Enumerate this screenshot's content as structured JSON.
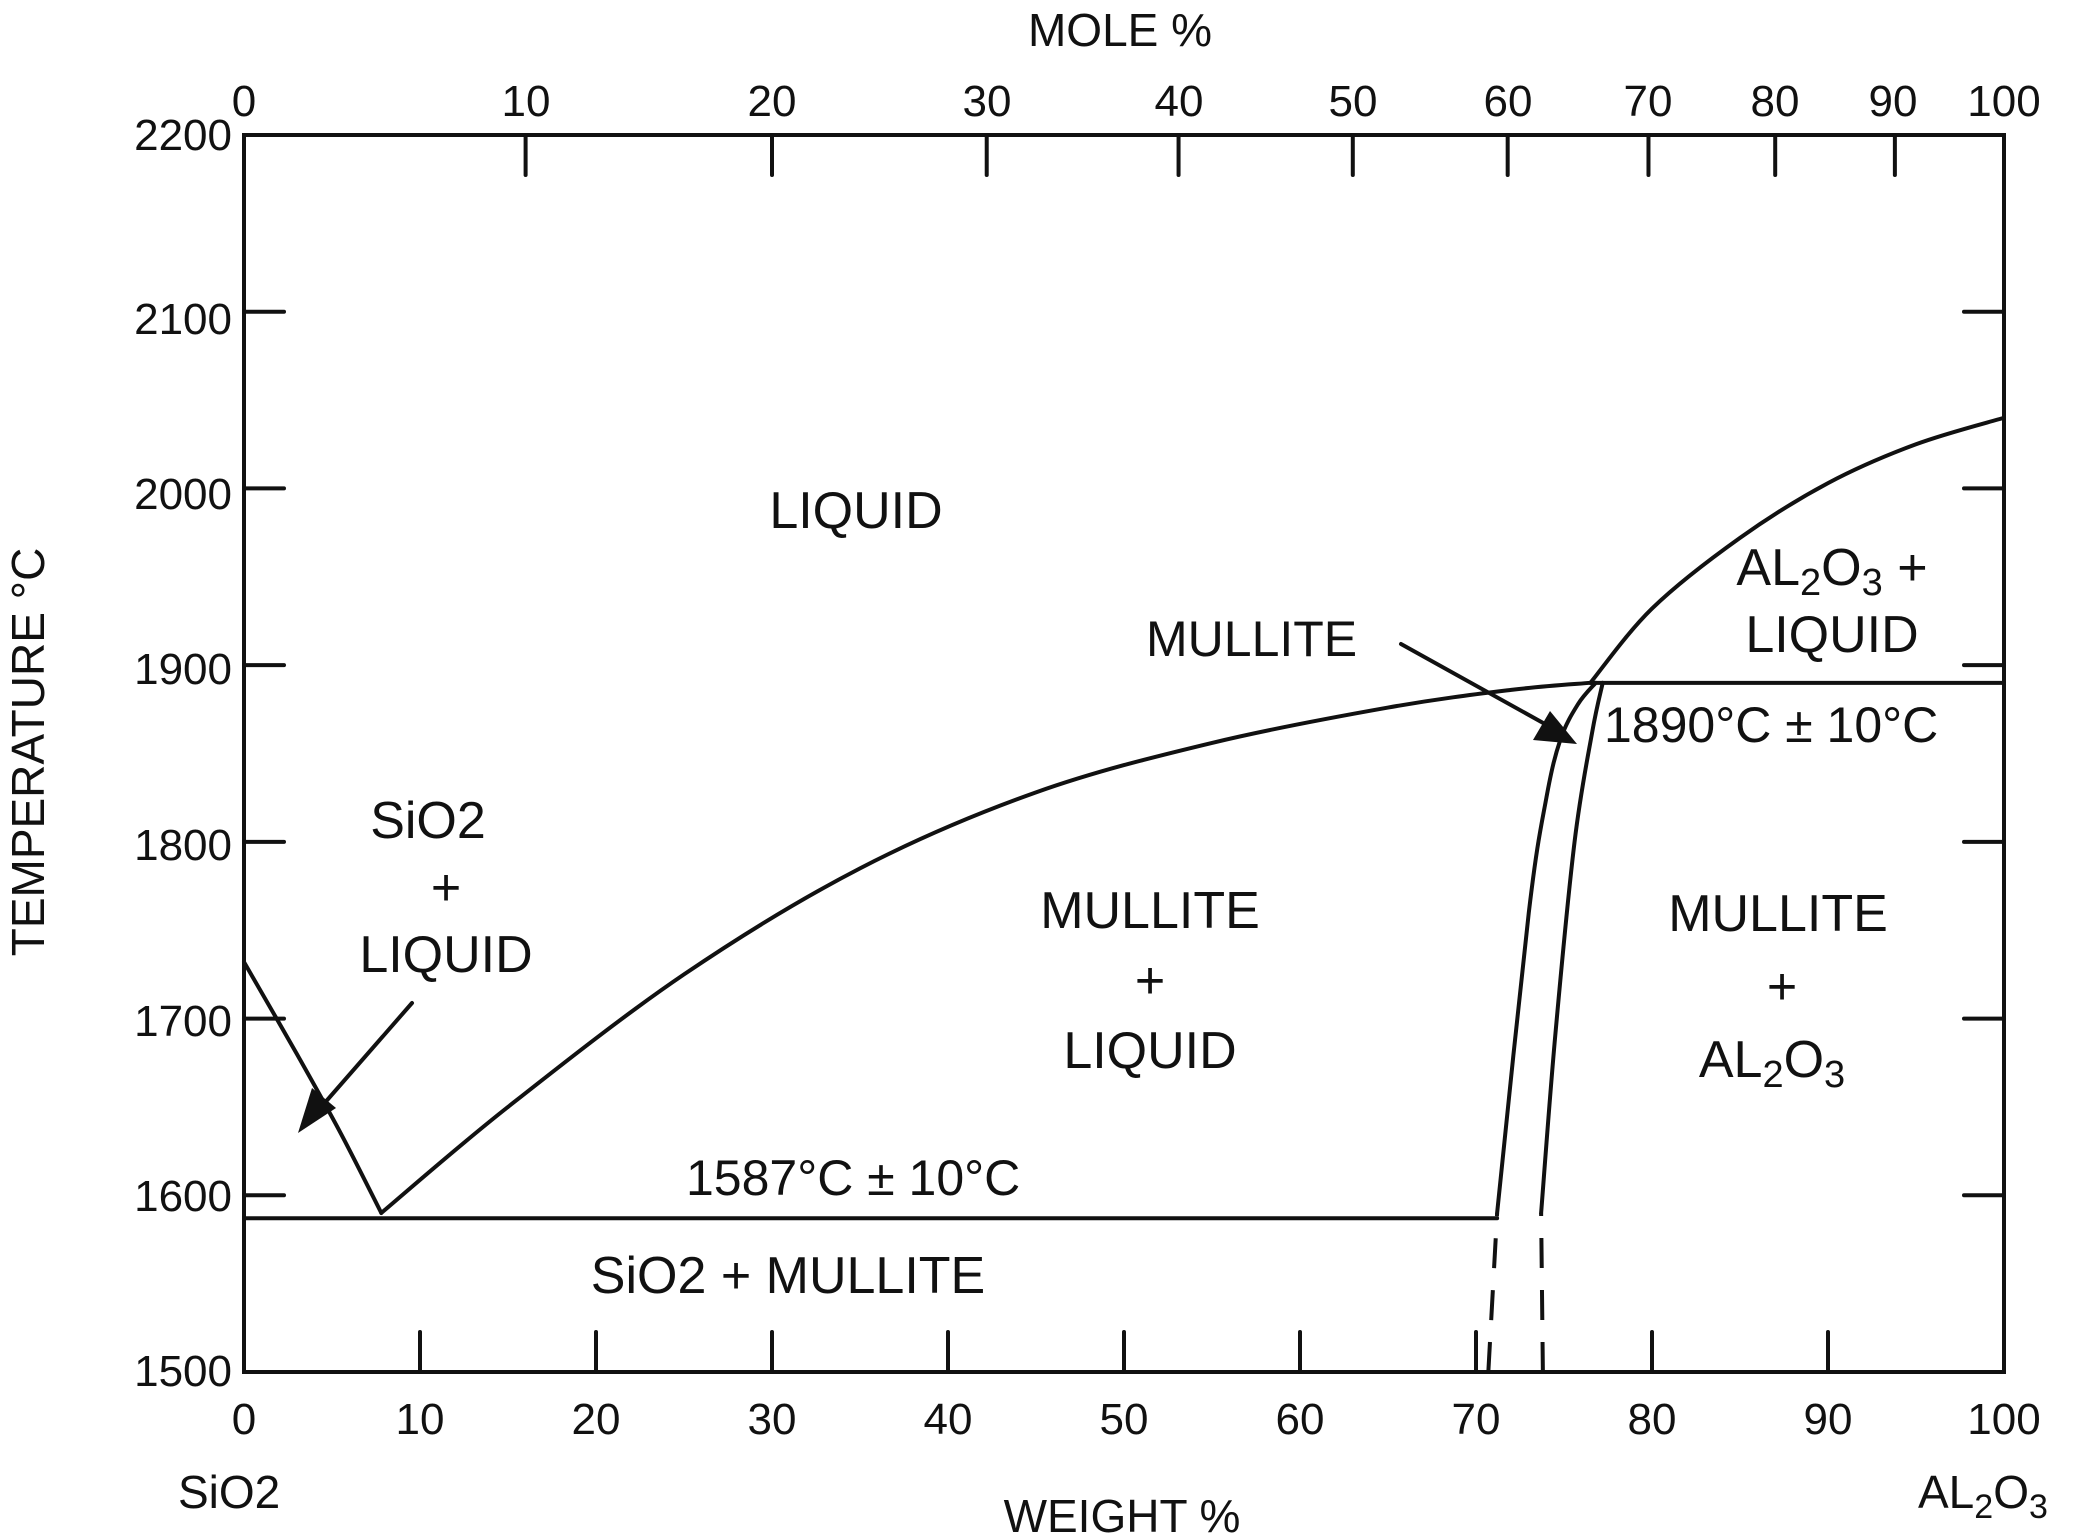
{
  "axes": {
    "top_title": "MOLE %",
    "bottom_title": "WEIGHT %",
    "left_title": "TEMPERATURE °C",
    "left_end_label": "SiO2",
    "right_end_label_parts": [
      "AL",
      "2",
      "O",
      "3"
    ],
    "bottom_ticks": [
      "0",
      "10",
      "20",
      "30",
      "40",
      "50",
      "60",
      "70",
      "80",
      "90",
      "100"
    ],
    "top_ticks": [
      {
        "label": "0",
        "weight_pct": 0
      },
      {
        "label": "10",
        "weight_pct": 16
      },
      {
        "label": "20",
        "weight_pct": 30
      },
      {
        "label": "30",
        "weight_pct": 42.2
      },
      {
        "label": "40",
        "weight_pct": 53.1
      },
      {
        "label": "50",
        "weight_pct": 63
      },
      {
        "label": "60",
        "weight_pct": 71.8
      },
      {
        "label": "70",
        "weight_pct": 79.8
      },
      {
        "label": "80",
        "weight_pct": 87
      },
      {
        "label": "90",
        "weight_pct": 93.8
      },
      {
        "label": "100",
        "weight_pct": 100
      }
    ],
    "left_ticks": [
      "2200",
      "2100",
      "2000",
      "1900",
      "1800",
      "1700",
      "1600",
      "1500"
    ]
  },
  "regions": {
    "liquid": "LIQUID",
    "sio2_liquid": [
      "SiO2",
      "+",
      "LIQUID"
    ],
    "mullite_liquid": [
      "MULLITE",
      "+",
      "LIQUID"
    ],
    "al2o3_liquid_line1": [
      "AL",
      "2",
      "O",
      "3",
      " +"
    ],
    "al2o3_liquid_line2": "LIQUID",
    "mullite_al2o3": [
      "MULLITE",
      "+"
    ],
    "mullite_al2o3_formula": [
      "AL",
      "2",
      "O",
      "3"
    ],
    "sio2_mullite": "SiO2 + MULLITE"
  },
  "annotations": {
    "mullite": "MULLITE",
    "eutectic_high": "1890°C ± 10°C",
    "eutectic_low": "1587°C ± 10°C"
  },
  "chart_data": {
    "type": "phase-diagram",
    "x_range": [
      0,
      100
    ],
    "y_range": [
      1500,
      2200
    ],
    "curves": [
      {
        "x": [
          0,
          3,
          5.5,
          7.8
        ],
        "y": [
          1732,
          1680,
          1635,
          1590
        ]
      },
      {
        "x": [
          7.8,
          15,
          25,
          35,
          45,
          55,
          65,
          72,
          76.5
        ],
        "y": [
          1590,
          1650,
          1725,
          1785,
          1828,
          1856,
          1876,
          1886,
          1890
        ]
      },
      {
        "x": [
          76.5,
          80,
          85,
          90,
          95,
          100
        ],
        "y": [
          1890,
          1932,
          1972,
          2003,
          2025,
          2040
        ]
      },
      {
        "x": [
          71.2,
          73,
          74,
          74.8,
          75.8,
          76.8
        ],
        "y": [
          1590,
          1760,
          1825,
          1858,
          1878,
          1890
        ]
      },
      {
        "x": [
          73.7,
          74.5,
          75.6,
          76.6,
          77.2
        ],
        "y": [
          1590,
          1690,
          1800,
          1862,
          1890
        ]
      },
      {
        "x": [
          0,
          71.2
        ],
        "y": [
          1587,
          1587
        ]
      },
      {
        "x": [
          76.5,
          100
        ],
        "y": [
          1890,
          1890
        ]
      }
    ],
    "dashed_curves": [
      {
        "x": [
          70.7,
          71.2
        ],
        "y": [
          1500,
          1590
        ]
      },
      {
        "x": [
          73.8,
          73.7
        ],
        "y": [
          1500,
          1590
        ]
      }
    ]
  }
}
